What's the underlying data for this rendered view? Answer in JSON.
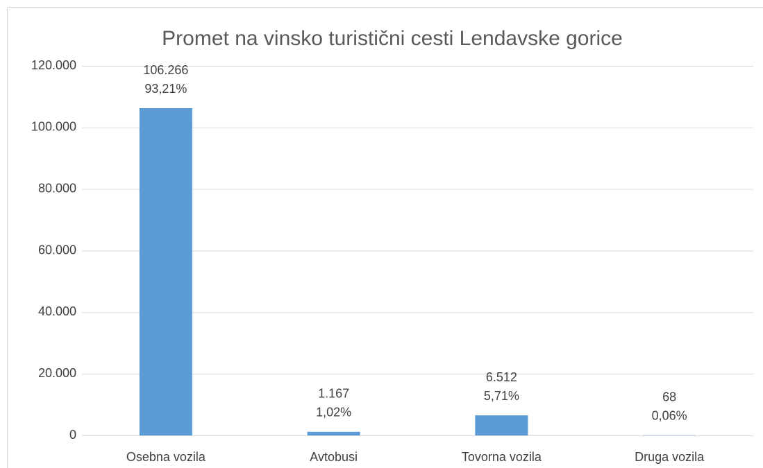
{
  "chart_data": {
    "type": "bar",
    "title": "Promet na vinsko turistični cesti Lendavske gorice",
    "categories": [
      "Osebna vozila",
      "Avtobusi",
      "Tovorna vozila",
      "Druga vozila"
    ],
    "values": [
      106266,
      1167,
      6512,
      68
    ],
    "value_labels": [
      "106.266",
      "1.167",
      "6.512",
      "68"
    ],
    "share_labels": [
      "93,21%",
      "1,02%",
      "5,71%",
      "0,06%"
    ],
    "color": "#5b9bd5",
    "ylim": [
      0,
      120000
    ],
    "yticks": [
      0,
      {
        "value": 20000,
        "label": "20.000"
      },
      {
        "value": 40000,
        "label": "40.000"
      },
      {
        "value": 60000,
        "label": "60.000"
      },
      {
        "value": 80000,
        "label": "80.000"
      },
      {
        "value": 100000,
        "label": "100.000"
      },
      {
        "value": 120000,
        "label": "120.000"
      }
    ],
    "grid": true
  }
}
